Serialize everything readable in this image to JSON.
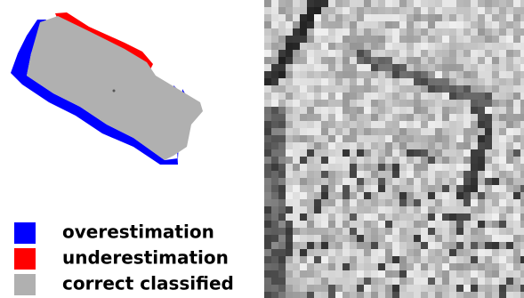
{
  "legend": {
    "items": [
      {
        "label": "overestimation",
        "color": "#0000ff"
      },
      {
        "label": "underestimation",
        "color": "#ff0000"
      },
      {
        "label": "correct classified",
        "color": "#b0b0b0"
      }
    ]
  }
}
